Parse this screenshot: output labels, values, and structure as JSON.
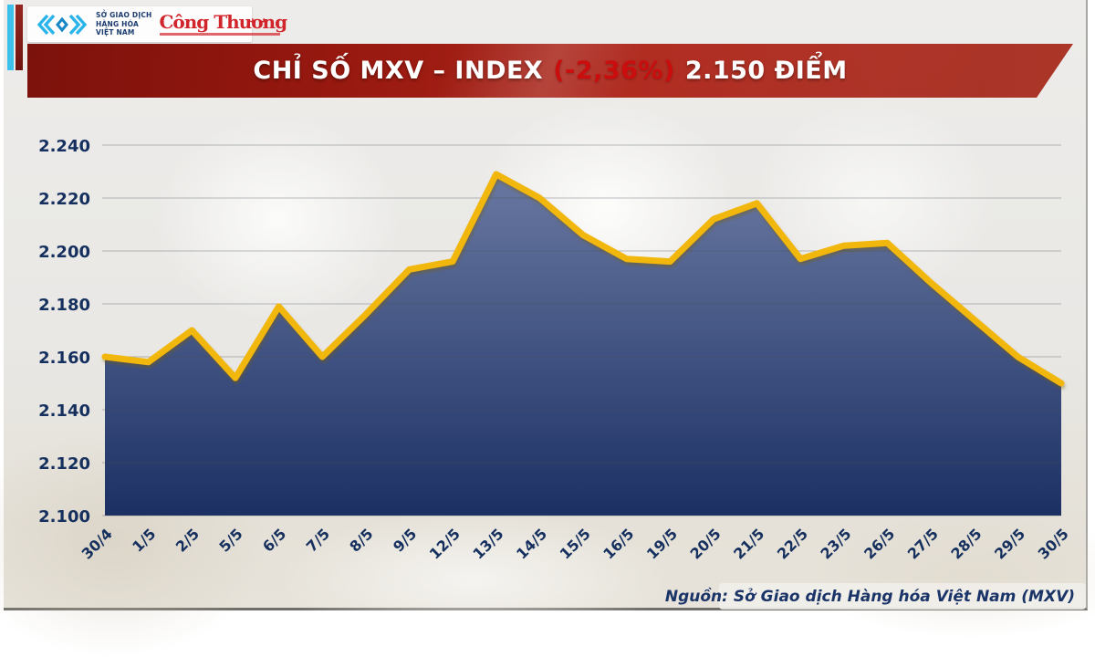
{
  "header": {
    "logo": {
      "org_lines": [
        "SỞ GIAO DỊCH",
        "HÀNG HÓA",
        "VIỆT NAM"
      ],
      "newspaper": "Công Thương"
    },
    "banner": {
      "title": "CHỈ SỐ MXV – INDEX",
      "change": "(-2,36%)",
      "points": "2.150 ĐIỂM"
    }
  },
  "chart_data": {
    "type": "area",
    "title": "CHỈ SỐ MXV – INDEX (-2,36%) 2.150 ĐIỂM",
    "x": [
      "30/4",
      "1/5",
      "2/5",
      "5/5",
      "6/5",
      "7/5",
      "8/5",
      "9/5",
      "12/5",
      "13/5",
      "14/5",
      "15/5",
      "16/5",
      "19/5",
      "20/5",
      "21/5",
      "22/5",
      "23/5",
      "26/5",
      "27/5",
      "28/5",
      "29/5",
      "30/5"
    ],
    "values": [
      2.16,
      2.158,
      2.17,
      2.152,
      2.179,
      2.16,
      2.176,
      2.193,
      2.196,
      2.229,
      2.22,
      2.206,
      2.197,
      2.196,
      2.212,
      2.218,
      2.197,
      2.202,
      2.203,
      2.188,
      2.174,
      2.16,
      2.15
    ],
    "ylim": [
      2.1,
      2.24
    ],
    "ytick_step": 0.02,
    "ytick_labels": [
      "2.100",
      "2.120",
      "2.140",
      "2.160",
      "2.180",
      "2.200",
      "2.220",
      "2.240"
    ],
    "xlabel": "",
    "ylabel": "",
    "grid": true,
    "legend": "none",
    "line_color": "#f2b70a",
    "fill_top": "#6f7ea6",
    "fill_bottom": "#1b2f63",
    "label_color": "#15305e"
  },
  "footer": {
    "source": "Nguồn: Sở Giao dịch Hàng hóa Việt Nam (MXV)"
  },
  "colors": {
    "accent_yellow": "#f2b70a",
    "navy_text": "#15305e",
    "banner_red": "#ab2318",
    "change_red": "#cb0d0d",
    "logo_cyan": "#2ab4e9",
    "logo_red": "#d2252b",
    "background": "#e9e8e5"
  }
}
